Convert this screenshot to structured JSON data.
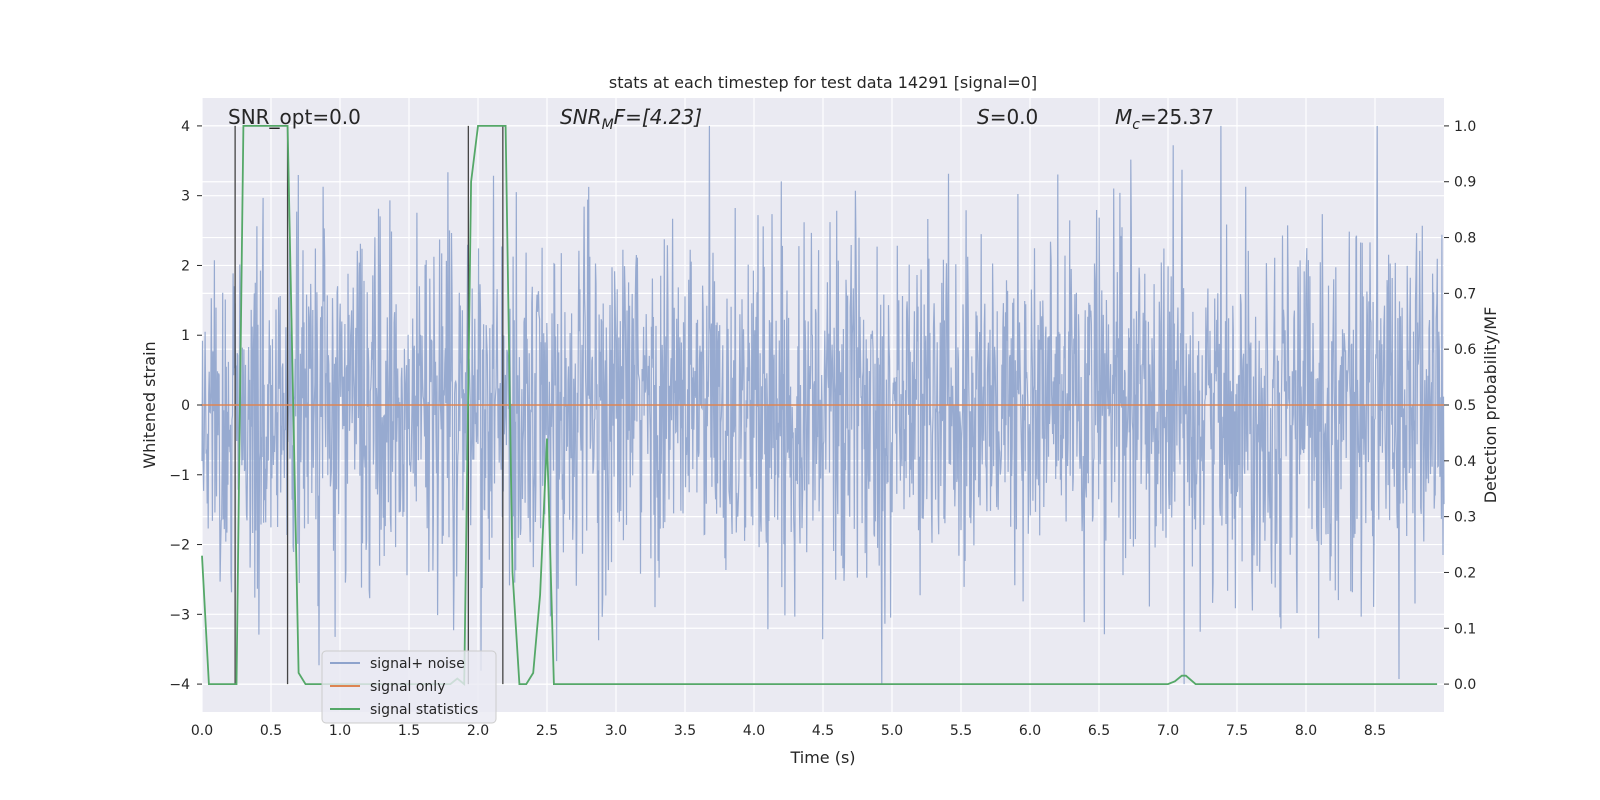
{
  "chart_data": {
    "type": "line",
    "title": "stats at each timestep for test data 14291 [signal=0]",
    "xlabel": "Time (s)",
    "ylabel": "Whitened strain",
    "ylabel_right": "Detection probability/MF",
    "xlim": [
      0.0,
      9.0
    ],
    "ylim": [
      -4.4,
      4.4
    ],
    "ylim_right": [
      -0.05,
      1.05
    ],
    "x_ticks": [
      "0.0",
      "0.5",
      "1.0",
      "1.5",
      "2.0",
      "2.5",
      "3.0",
      "3.5",
      "4.0",
      "4.5",
      "5.0",
      "5.5",
      "6.0",
      "6.5",
      "7.0",
      "7.5",
      "8.0",
      "8.5"
    ],
    "y_ticks": [
      "4",
      "3",
      "2",
      "1",
      "0",
      "−1",
      "−2",
      "−3",
      "−4"
    ],
    "y_ticks_right": [
      "1.0",
      "0.9",
      "0.8",
      "0.7",
      "0.6",
      "0.5",
      "0.4",
      "0.3",
      "0.2",
      "0.1",
      "0.0"
    ],
    "annotations": {
      "snr_opt": "SNR_opt=0.0",
      "snr_mf_label": "SNR",
      "snr_mf_sub": "M",
      "snr_mf_rest": "F=[4.23]",
      "s_label": "S",
      "s_value": "=0.0",
      "mc_label": "M",
      "mc_sub": "c",
      "mc_value": "=25.37"
    },
    "legend": {
      "position": "lower-left",
      "entries": [
        "signal+ noise",
        "signal only",
        "signal statistics"
      ]
    },
    "series": [
      {
        "name": "signal+ noise",
        "axis": "left",
        "color": "#8ea3cc",
        "description": "whitened noise, samples roughly within -3.9..3.9",
        "noise_envelope": [
          -4.0,
          4.0
        ]
      },
      {
        "name": "signal only",
        "axis": "left",
        "color": "#dd8452",
        "x": [
          0.0,
          9.0
        ],
        "y": [
          0.0,
          0.0
        ]
      },
      {
        "name": "signal statistics",
        "axis": "right",
        "color": "#55a868",
        "x": [
          0.0,
          0.05,
          0.1,
          0.15,
          0.2,
          0.25,
          0.3,
          0.35,
          0.4,
          0.45,
          0.5,
          0.55,
          0.6,
          0.62,
          0.7,
          0.75,
          0.8,
          0.85,
          0.9,
          1.0,
          1.5,
          1.7,
          1.8,
          1.85,
          1.9,
          1.95,
          2.0,
          2.05,
          2.1,
          2.15,
          2.2,
          2.25,
          2.3,
          2.35,
          2.4,
          2.45,
          2.5,
          2.55,
          2.6,
          3.0,
          4.0,
          5.0,
          6.0,
          6.5,
          7.0,
          7.05,
          7.1,
          7.13,
          7.2,
          7.3,
          8.0,
          8.95
        ],
        "y": [
          0.23,
          0.0,
          0.0,
          0.0,
          0.0,
          0.0,
          1.0,
          1.0,
          1.0,
          1.0,
          1.0,
          1.0,
          1.0,
          1.0,
          0.02,
          0.0,
          0.0,
          0.0,
          0.0,
          0.0,
          0.0,
          0.0,
          0.0,
          0.01,
          0.0,
          0.9,
          1.0,
          1.0,
          1.0,
          1.0,
          1.0,
          0.2,
          0.0,
          0.0,
          0.02,
          0.16,
          0.44,
          0.0,
          0.0,
          0.0,
          0.0,
          0.0,
          0.0,
          0.0,
          0.0,
          0.005,
          0.015,
          0.015,
          0.0,
          0.0,
          0.0,
          0.0
        ]
      }
    ],
    "vertical_markers": [
      0.24,
      0.62,
      1.93,
      2.18
    ]
  }
}
